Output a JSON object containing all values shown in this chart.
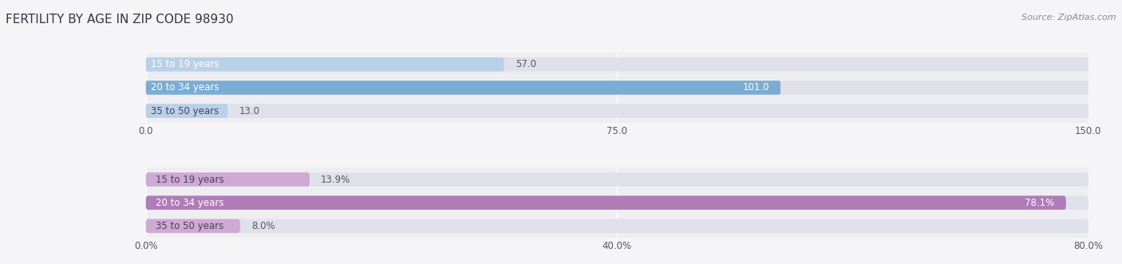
{
  "title": "FERTILITY BY AGE IN ZIP CODE 98930",
  "source": "Source: ZipAtlas.com",
  "top_chart": {
    "categories": [
      "15 to 19 years",
      "20 to 34 years",
      "35 to 50 years"
    ],
    "values": [
      57.0,
      101.0,
      13.0
    ],
    "xlim": [
      0,
      150
    ],
    "xticks": [
      0.0,
      75.0,
      150.0
    ],
    "xtick_labels": [
      "0.0",
      "75.0",
      "150.0"
    ],
    "bar_color_main": "#7bacd4",
    "bar_color_light": "#b8d0e8",
    "value_color_inside": "#ffffff",
    "value_color_outside": "#555566"
  },
  "bottom_chart": {
    "categories": [
      "15 to 19 years",
      "20 to 34 years",
      "35 to 50 years"
    ],
    "values": [
      13.9,
      78.1,
      8.0
    ],
    "xlim": [
      0,
      80
    ],
    "xticks": [
      0.0,
      40.0,
      80.0
    ],
    "xtick_labels": [
      "0.0%",
      "40.0%",
      "80.0%"
    ],
    "bar_color_main": "#b07cb8",
    "bar_color_light": "#cfa8d4",
    "value_color_inside": "#ffffff",
    "value_color_outside": "#555566"
  },
  "bg_color": "#ededf2",
  "bar_bg_color": "#e0e0ea",
  "title_color": "#333344",
  "source_color": "#888899",
  "bar_height": 0.6,
  "label_fontsize": 8.5,
  "value_fontsize": 8.5,
  "tick_fontsize": 8.5,
  "title_fontsize": 11
}
